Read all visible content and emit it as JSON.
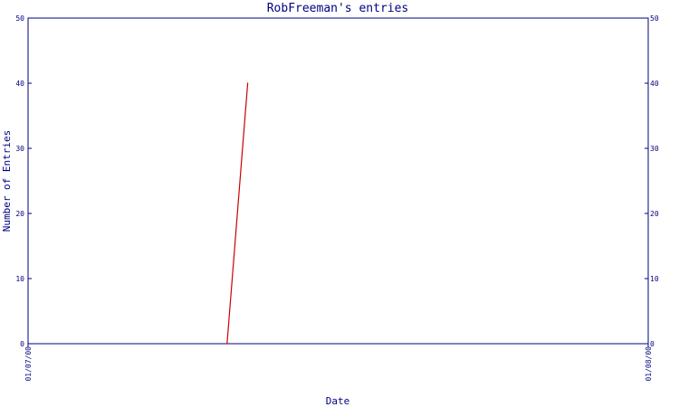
{
  "chart_data": {
    "type": "line",
    "title": "RobFreeman's entries",
    "xlabel": "Date",
    "ylabel": "Number of Entries",
    "x_tick_labels": [
      "01/07/00",
      "01/08/00"
    ],
    "y_ticks": [
      0,
      10,
      20,
      30,
      40,
      50
    ],
    "ylim": [
      0,
      50
    ],
    "xlim": [
      "2000-01-07",
      "2000-01-08"
    ],
    "grid": false,
    "legend": "none",
    "series": [
      {
        "points": [
          {
            "x": "2000-01-07T07:42",
            "y": 0
          },
          {
            "x": "2000-01-07T08:30",
            "y": 40
          }
        ],
        "color": "#cc0000"
      }
    ],
    "axis_color": "#000080"
  }
}
